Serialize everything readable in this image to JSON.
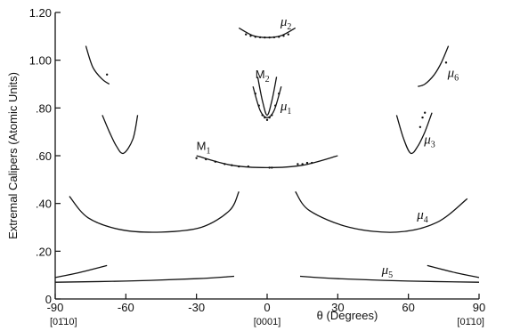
{
  "chart_data": {
    "type": "line",
    "title": "",
    "ylabel": "Extremal Calipers (Atomic Units)",
    "xlabel": "θ (Degrees)",
    "xlim": [
      -90,
      90
    ],
    "ylim": [
      0,
      1.2
    ],
    "x_ticks": [
      -90,
      -60,
      -30,
      0,
      30,
      60,
      90
    ],
    "x_tick_labels": [
      "-90",
      "-60",
      "-30",
      "0",
      "30",
      "60",
      "90"
    ],
    "x_sub_labels": [
      {
        "x": -90,
        "text": "[01̄10]"
      },
      {
        "x": 0,
        "text": "[0001]"
      },
      {
        "x": 90,
        "text": "[01̄10]"
      }
    ],
    "y_ticks": [
      0,
      0.2,
      0.4,
      0.6,
      0.8,
      1.0,
      1.2
    ],
    "y_tick_labels": [
      "0",
      ".20",
      ".40",
      ".60",
      ".80",
      "1.00",
      "1.20"
    ],
    "grid": false,
    "series": [
      {
        "name": "μ2",
        "x": [
          -12,
          -6,
          0,
          6,
          12
        ],
        "y": [
          1.135,
          1.103,
          1.095,
          1.103,
          1.135
        ]
      },
      {
        "name": "",
        "x": [
          -77,
          -74,
          -70,
          -67
        ],
        "y": [
          1.06,
          0.97,
          0.92,
          0.9
        ]
      },
      {
        "name": "μ6",
        "x": [
          64,
          67,
          71,
          74,
          77
        ],
        "y": [
          0.89,
          0.9,
          0.94,
          0.99,
          1.06
        ]
      },
      {
        "name": "M2",
        "x": [
          -6,
          -3,
          0,
          3,
          6
        ],
        "y": [
          0.89,
          0.79,
          0.76,
          0.79,
          0.89
        ]
      },
      {
        "name": "μ1",
        "x": [
          -4,
          -2,
          0,
          2,
          4
        ],
        "y": [
          0.93,
          0.83,
          0.77,
          0.83,
          0.93
        ]
      },
      {
        "name": "",
        "x": [
          -70,
          -67,
          -64,
          -61,
          -57,
          -55
        ],
        "y": [
          0.77,
          0.7,
          0.64,
          0.61,
          0.67,
          0.77
        ]
      },
      {
        "name": "μ3",
        "x": [
          55,
          58,
          61,
          64,
          67,
          70
        ],
        "y": [
          0.77,
          0.67,
          0.61,
          0.64,
          0.7,
          0.78
        ]
      },
      {
        "name": "M1",
        "x": [
          -30,
          -15,
          0,
          15,
          30
        ],
        "y": [
          0.6,
          0.56,
          0.55,
          0.56,
          0.6
        ]
      },
      {
        "name": "",
        "x": [
          -84,
          -76,
          -62,
          -45,
          -28,
          -16,
          -12
        ],
        "y": [
          0.43,
          0.34,
          0.29,
          0.28,
          0.3,
          0.37,
          0.45
        ]
      },
      {
        "name": "μ4",
        "x": [
          12,
          18,
          35,
          55,
          72,
          85
        ],
        "y": [
          0.45,
          0.37,
          0.3,
          0.28,
          0.32,
          0.42
        ]
      },
      {
        "name": "",
        "x": [
          -90,
          -80,
          -68
        ],
        "y": [
          0.09,
          0.11,
          0.14
        ]
      },
      {
        "name": "",
        "x": [
          -90,
          -60,
          -30,
          -14
        ],
        "y": [
          0.07,
          0.075,
          0.085,
          0.095
        ]
      },
      {
        "name": "μ5",
        "x": [
          14,
          30,
          60,
          90
        ],
        "y": [
          0.095,
          0.085,
          0.075,
          0.07
        ]
      },
      {
        "name": "",
        "x": [
          68,
          80,
          90
        ],
        "y": [
          0.14,
          0.11,
          0.09
        ]
      }
    ],
    "points": [
      {
        "x": [
          -9,
          -7,
          -5,
          -3,
          -1,
          1,
          3,
          5,
          7,
          9
        ],
        "y": [
          1.108,
          1.102,
          1.098,
          1.096,
          1.095,
          1.095,
          1.096,
          1.098,
          1.102,
          1.108
        ]
      },
      {
        "x": [
          -5,
          -3.5,
          -2,
          -1,
          0,
          1,
          2,
          3.5,
          5
        ],
        "y": [
          0.86,
          0.81,
          0.77,
          0.76,
          0.75,
          0.76,
          0.77,
          0.81,
          0.86
        ]
      },
      {
        "x": [
          -30,
          -26,
          -22,
          -18,
          -15,
          -12,
          -8,
          1,
          2,
          13,
          15,
          17,
          19
        ],
        "y": [
          0.59,
          0.585,
          0.575,
          0.565,
          0.56,
          0.555,
          0.555,
          0.55,
          0.55,
          0.565,
          0.565,
          0.57,
          0.57
        ]
      },
      {
        "x": [
          65,
          66,
          67
        ],
        "y": [
          0.72,
          0.76,
          0.78
        ]
      },
      {
        "x": [
          -68,
          76
        ],
        "y": [
          0.94,
          0.99
        ]
      }
    ],
    "annotations": [
      {
        "text": "μ2",
        "x": 8,
        "y": 1.145
      },
      {
        "text": "M2",
        "x": -2,
        "y": 0.925
      },
      {
        "text": "μ1",
        "x": 8,
        "y": 0.79
      },
      {
        "text": "M1",
        "x": -27,
        "y": 0.625
      },
      {
        "text": "μ6",
        "x": 79,
        "y": 0.93
      },
      {
        "text": "μ3",
        "x": 69,
        "y": 0.65
      },
      {
        "text": "μ4",
        "x": 66,
        "y": 0.335
      },
      {
        "text": "μ5",
        "x": 51,
        "y": 0.105
      }
    ]
  }
}
